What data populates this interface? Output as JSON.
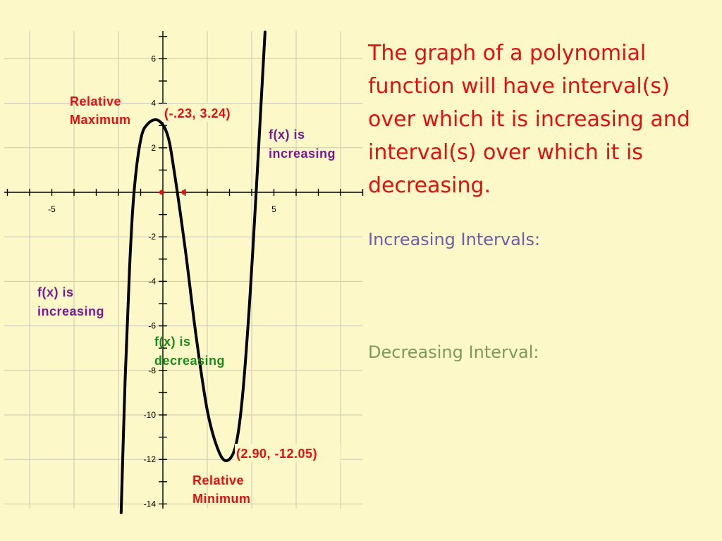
{
  "title": "The graph of a polynomial function will have interval(s) over which it is increasing and interval(s) over which it is decreasing.",
  "increasing_label": "Increasing Intervals:",
  "decreasing_label": "Decreasing Interval:",
  "colors": {
    "background": "#fdf8c8",
    "red": "#e01010",
    "purple": "#7a1a8e",
    "green": "#1a8a1a",
    "increasing_heading": "#6e5ea8",
    "decreasing_heading": "#7c9a5e"
  },
  "annotations": {
    "relative_maximum": [
      "Relative",
      "Maximum"
    ],
    "max_point": "(-.23, 3.24)",
    "increasing_right": [
      "f(x) is",
      "increasing"
    ],
    "increasing_left": [
      "f(x) is",
      "increasing"
    ],
    "decreasing_middle": [
      "f(x) is",
      "decreasing"
    ],
    "min_point": "(2.90, -12.05)",
    "relative_minimum": [
      "Relative",
      "Minimum"
    ]
  },
  "chart_data": {
    "type": "line",
    "x_tick_labels": [
      "-5",
      "5"
    ],
    "y_tick_labels": [
      "6",
      "4",
      "2",
      "-2",
      "-4",
      "-6",
      "-8",
      "-10",
      "-12",
      "-14"
    ],
    "xlim": [
      -7.2,
      9
    ],
    "ylim": [
      -14.4,
      7.2
    ],
    "grid": true,
    "series": [
      {
        "points": [
          [
            -1.88,
            -14.4
          ],
          [
            -1.7,
            -8.5
          ],
          [
            -1.5,
            -3.4
          ],
          [
            -1.3,
            0.0
          ],
          [
            -1.0,
            2.35
          ],
          [
            -0.7,
            3.05
          ],
          [
            -0.23,
            3.24
          ],
          [
            0.2,
            2.6
          ],
          [
            0.5,
            1.0
          ],
          [
            1.0,
            -2.5
          ],
          [
            1.5,
            -6.5
          ],
          [
            2.0,
            -9.8
          ],
          [
            2.5,
            -11.6
          ],
          [
            2.9,
            -12.05
          ],
          [
            3.3,
            -11.3
          ],
          [
            3.6,
            -9.0
          ],
          [
            3.9,
            -5.0
          ],
          [
            4.2,
            0.0
          ],
          [
            4.4,
            3.6
          ],
          [
            4.6,
            7.2
          ]
        ]
      }
    ],
    "marked_points": [
      [
        -0.05,
        0
      ],
      [
        0.95,
        0
      ]
    ]
  }
}
